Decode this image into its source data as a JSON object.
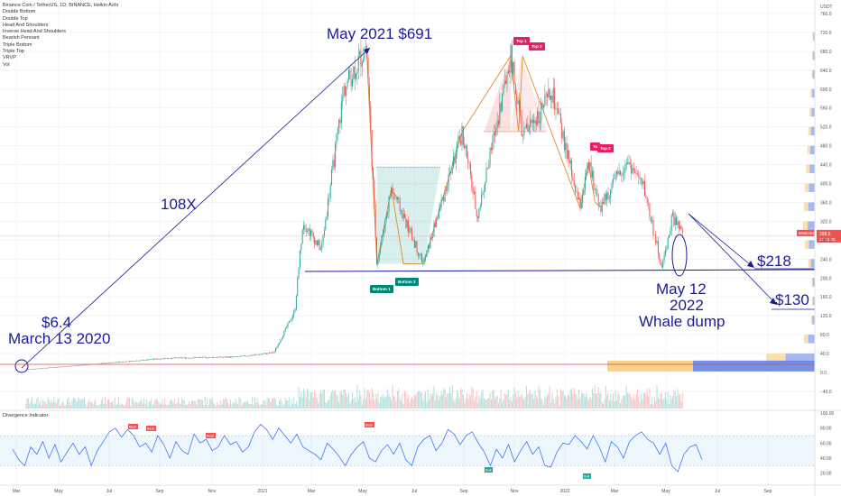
{
  "header": {
    "symbol_line": "Binance Coin / TetherUS, 1D, BINANCE, Heikin Ashi",
    "indicators": [
      "Double Bottom",
      "Double Top",
      "Head And Shoulders",
      "Inverse Head And Shoulders",
      "Bearish Pennant",
      "Triple Bottom",
      "Triple Top",
      "VRVP",
      "Vol"
    ]
  },
  "price_axis": {
    "unit": "USDT",
    "ticks": [
      "760.0",
      "720.0",
      "680.0",
      "640.0",
      "600.0",
      "560.0",
      "520.0",
      "480.0",
      "440.0",
      "400.0",
      "360.0",
      "320.0",
      "280.0",
      "240.0",
      "200.0",
      "160.0",
      "120.0",
      "80.0",
      "40.0",
      "0.0",
      "−40.0"
    ],
    "last_price": "288.6",
    "last_price_sub": "15:34:25",
    "symbol_tag": "BNBUSDT",
    "colors": {
      "up": "#26a69a",
      "down": "#ef5350",
      "last_price": "#ef5350",
      "profile_blue": "#5b7de8",
      "profile_yellow": "#f5c76b"
    }
  },
  "annotations": {
    "low_price": "$6.4",
    "low_date": "March 13 2020",
    "multiplier": "108X",
    "high": "May 2021 $691",
    "whale_date": "May 12",
    "whale_year": "2022",
    "whale_text": "Whale dump",
    "target_1": "$218",
    "target_2": "$130",
    "color": "#1a1a9c"
  },
  "pattern_labels": {
    "top1": "Top 1",
    "top2": "Top 2",
    "top1b": "To",
    "top2b": "Top 2",
    "bottom1": "Bottom 1",
    "bottom2": "Bottom 2"
  },
  "indicator": {
    "title": "Divergence Indicator",
    "ticks": [
      "100.00",
      "80.00",
      "60.00",
      "40.00",
      "20.00"
    ],
    "band": [
      30,
      70
    ],
    "bear_label": "Bear",
    "bull_label": "Bull"
  },
  "time_axis": {
    "labels": [
      "Mar",
      "May",
      "Jul",
      "Sep",
      "Nov",
      "2021",
      "Mar",
      "May",
      "Jul",
      "Sep",
      "Nov",
      "2022",
      "Mar",
      "May",
      "Jul",
      "Sep"
    ]
  },
  "chart_data": {
    "type": "candlestick",
    "title": "Binance Coin / TetherUS, 1D, BINANCE, Heikin Ashi",
    "y_unit": "USDT",
    "ylim": [
      -40,
      780
    ],
    "x_range": [
      "2020-02",
      "2022-10"
    ],
    "price_path": [
      {
        "date": "2020-03-13",
        "price": 6.4
      },
      {
        "date": "2020-06-01",
        "price": 17
      },
      {
        "date": "2020-09-01",
        "price": 30
      },
      {
        "date": "2020-12-01",
        "price": 33
      },
      {
        "date": "2021-01-15",
        "price": 42
      },
      {
        "date": "2021-02-10",
        "price": 130
      },
      {
        "date": "2021-02-20",
        "price": 320
      },
      {
        "date": "2021-03-15",
        "price": 260
      },
      {
        "date": "2021-04-12",
        "price": 600
      },
      {
        "date": "2021-05-10",
        "price": 691
      },
      {
        "date": "2021-05-23",
        "price": 230
      },
      {
        "date": "2021-06-10",
        "price": 390
      },
      {
        "date": "2021-07-20",
        "price": 230
      },
      {
        "date": "2021-09-06",
        "price": 510
      },
      {
        "date": "2021-09-25",
        "price": 330
      },
      {
        "date": "2021-11-05",
        "price": 670
      },
      {
        "date": "2021-11-20",
        "price": 500
      },
      {
        "date": "2021-12-27",
        "price": 590
      },
      {
        "date": "2022-01-30",
        "price": 350
      },
      {
        "date": "2022-02-10",
        "price": 440
      },
      {
        "date": "2022-02-25",
        "price": 350
      },
      {
        "date": "2022-03-30",
        "price": 450
      },
      {
        "date": "2022-04-20",
        "price": 390
      },
      {
        "date": "2022-05-12",
        "price": 220
      },
      {
        "date": "2022-05-25",
        "price": 330
      },
      {
        "date": "2022-06-08",
        "price": 288.6
      }
    ],
    "volume_profile_right": [
      {
        "price": 700,
        "rel": 0.04
      },
      {
        "price": 660,
        "rel": 0.05
      },
      {
        "price": 620,
        "rel": 0.06
      },
      {
        "price": 580,
        "rel": 0.08
      },
      {
        "price": 540,
        "rel": 0.1
      },
      {
        "price": 500,
        "rel": 0.12
      },
      {
        "price": 460,
        "rel": 0.14
      },
      {
        "price": 420,
        "rel": 0.16
      },
      {
        "price": 380,
        "rel": 0.18
      },
      {
        "price": 340,
        "rel": 0.2
      },
      {
        "price": 300,
        "rel": 0.22
      },
      {
        "price": 260,
        "rel": 0.18
      },
      {
        "price": 220,
        "rel": 0.12
      },
      {
        "price": 180,
        "rel": 0.06
      },
      {
        "price": 140,
        "rel": 0.05
      },
      {
        "price": 100,
        "rel": 0.07
      },
      {
        "price": 60,
        "rel": 0.2
      },
      {
        "price": 20,
        "rel": 0.9
      }
    ],
    "levels": [
      {
        "name": "support",
        "price": 218
      },
      {
        "name": "target",
        "price": 130
      },
      {
        "name": "double_bottom_neckline",
        "price": 435
      },
      {
        "name": "double_top_neckline",
        "price": 510
      }
    ],
    "indicator_series": [
      52,
      38,
      30,
      55,
      45,
      62,
      40,
      58,
      35,
      48,
      60,
      45,
      55,
      30,
      50,
      62,
      75,
      80,
      68,
      78,
      70,
      55,
      60,
      48,
      70,
      58,
      40,
      62,
      50,
      45,
      72,
      60,
      65,
      50,
      55,
      70,
      58,
      62,
      48,
      55,
      75,
      85,
      78,
      65,
      80,
      70,
      60,
      72,
      55,
      50,
      45,
      38,
      60,
      52,
      42,
      30,
      45,
      55,
      62,
      40,
      35,
      50,
      58,
      45,
      60,
      38,
      30,
      55,
      65,
      70,
      50,
      60,
      78,
      72,
      58,
      70,
      75,
      60,
      48,
      30,
      52,
      40,
      58,
      35,
      50,
      62,
      45,
      55,
      30,
      28,
      48,
      60,
      58,
      70,
      62,
      52,
      70,
      55,
      35,
      62,
      55,
      40,
      62,
      70,
      75,
      65,
      60,
      45,
      60,
      30,
      22,
      45,
      55,
      58,
      38
    ]
  }
}
